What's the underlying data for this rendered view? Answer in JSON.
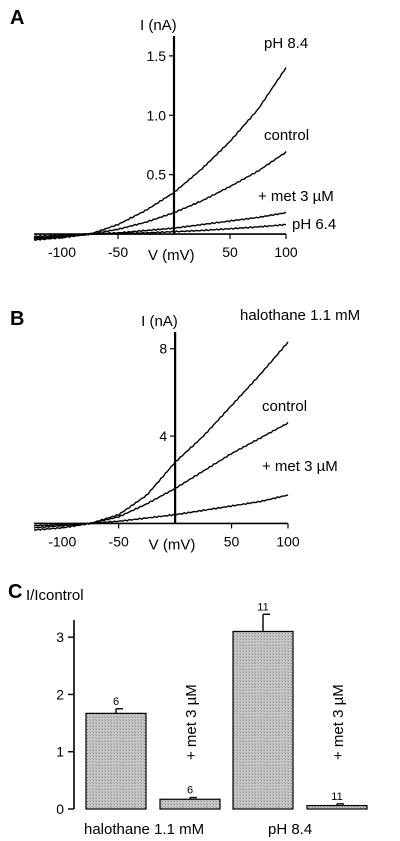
{
  "chart_data": [
    {
      "panel": "A",
      "type": "line",
      "xlabel": "V (mV)",
      "ylabel": "I (nA)",
      "xlim": [
        -125,
        100
      ],
      "ylim": [
        -0.05,
        1.6
      ],
      "xticks": [
        -100,
        -50,
        50,
        100
      ],
      "xtick_labels": [
        "-100",
        "-50",
        "50",
        "100"
      ],
      "yticks": [
        0.5,
        1.0,
        1.5
      ],
      "ytick_labels": [
        "0.5",
        "1.0",
        "1.5"
      ],
      "series": [
        {
          "name": "pH 8.4",
          "x": [
            -125,
            -100,
            -75,
            -50,
            -25,
            0,
            25,
            50,
            75,
            100
          ],
          "y": [
            -0.05,
            -0.03,
            0.0,
            0.08,
            0.2,
            0.35,
            0.55,
            0.78,
            1.05,
            1.4
          ]
        },
        {
          "name": "control",
          "x": [
            -125,
            -100,
            -75,
            -50,
            -25,
            0,
            25,
            50,
            75,
            100
          ],
          "y": [
            -0.04,
            -0.02,
            0.0,
            0.04,
            0.1,
            0.18,
            0.28,
            0.4,
            0.53,
            0.69
          ]
        },
        {
          "name": "+ met 3 µM",
          "x": [
            -125,
            -100,
            -75,
            -50,
            -25,
            0,
            25,
            50,
            75,
            100
          ],
          "y": [
            -0.03,
            -0.02,
            0.0,
            0.01,
            0.03,
            0.05,
            0.08,
            0.11,
            0.14,
            0.18
          ]
        },
        {
          "name": "pH 6.4",
          "x": [
            -125,
            -100,
            -75,
            -50,
            -25,
            0,
            25,
            50,
            75,
            100
          ],
          "y": [
            -0.02,
            -0.01,
            0.0,
            0.005,
            0.01,
            0.02,
            0.03,
            0.045,
            0.06,
            0.08
          ]
        }
      ]
    },
    {
      "panel": "B",
      "type": "line",
      "xlabel": "V (mV)",
      "ylabel": "I (nA)",
      "xlim": [
        -125,
        100
      ],
      "ylim": [
        -0.3,
        8.4
      ],
      "xticks": [
        -100,
        -50,
        50,
        100
      ],
      "xtick_labels": [
        "-100",
        "-50",
        "50",
        "100"
      ],
      "yticks": [
        4,
        8
      ],
      "ytick_labels": [
        "4",
        "8"
      ],
      "series": [
        {
          "name": "halothane 1.1 mM",
          "x": [
            -125,
            -100,
            -75,
            -50,
            -25,
            0,
            25,
            50,
            75,
            100
          ],
          "y": [
            -0.3,
            -0.2,
            0.0,
            0.4,
            1.3,
            2.8,
            4.0,
            5.4,
            6.8,
            8.3
          ]
        },
        {
          "name": "control",
          "x": [
            -125,
            -100,
            -75,
            -50,
            -25,
            0,
            25,
            50,
            75,
            100
          ],
          "y": [
            -0.2,
            -0.1,
            0.0,
            0.3,
            0.9,
            1.6,
            2.4,
            3.2,
            3.9,
            4.6
          ]
        },
        {
          "name": "+ met 3 µM",
          "x": [
            -125,
            -100,
            -75,
            -50,
            -25,
            0,
            25,
            50,
            75,
            100
          ],
          "y": [
            -0.1,
            -0.05,
            0.0,
            0.1,
            0.25,
            0.4,
            0.6,
            0.8,
            1.0,
            1.3
          ]
        }
      ]
    },
    {
      "panel": "C",
      "type": "bar",
      "ylabel": "I/Icontrol",
      "ylim": [
        0,
        3.3
      ],
      "yticks": [
        0,
        1,
        2,
        3
      ],
      "ytick_labels": [
        "0",
        "1",
        "2",
        "3"
      ],
      "bars": [
        {
          "value": 1.67,
          "error": 0.08,
          "n": "6"
        },
        {
          "value": 0.17,
          "error": 0.03,
          "n": "6",
          "rotated_label": "+ met 3 µM"
        },
        {
          "value": 3.1,
          "error": 0.3,
          "n": "11"
        },
        {
          "value": 0.06,
          "error": 0.03,
          "n": "11",
          "rotated_label": "+ met 3 µM"
        }
      ],
      "group_labels": [
        "halothane 1.1 mM",
        "pH 8.4"
      ]
    }
  ]
}
